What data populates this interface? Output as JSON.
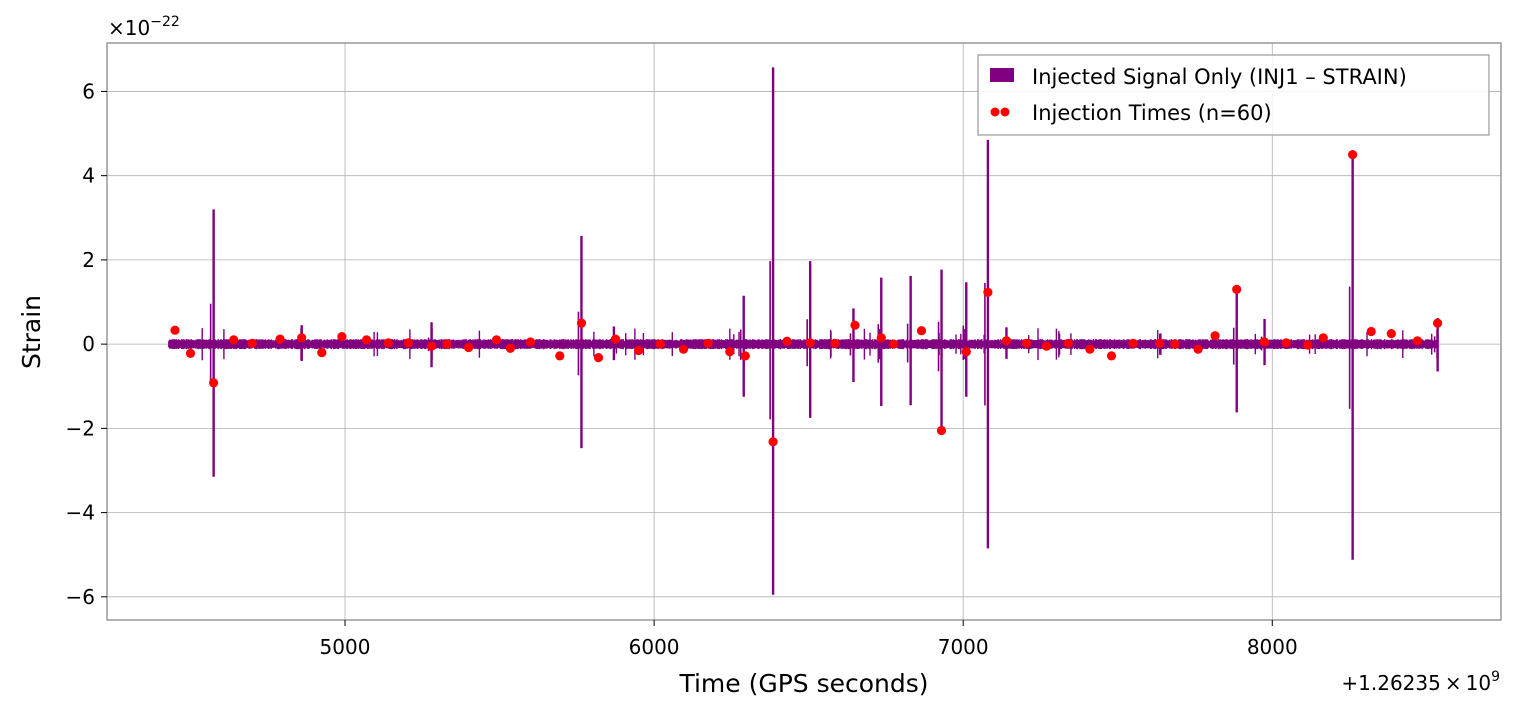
{
  "chart_data": {
    "type": "line",
    "title": "",
    "xlabel": "Time (GPS seconds)",
    "ylabel": "Strain",
    "x_offset_label_base": "+1.26235",
    "x_offset_label_times": "×",
    "x_offset_label_ten": "10",
    "x_offset_label_exp": "9",
    "y_scale_label_times": "×",
    "y_scale_label_ten": "10",
    "y_scale_label_exp": "−22",
    "xlim": [
      4230,
      8740
    ],
    "ylim": [
      -6.55,
      7.15
    ],
    "xticks": [
      5000,
      6000,
      7000,
      8000
    ],
    "xtick_labels": [
      "5000",
      "6000",
      "7000",
      "8000"
    ],
    "yticks": [
      -6,
      -4,
      -2,
      0,
      2,
      4,
      6
    ],
    "ytick_labels": [
      "−6",
      "−4",
      "−2",
      "0",
      "2",
      "4",
      "6"
    ],
    "grid": true,
    "legend_position": "top-right",
    "colors": {
      "signal": "#800080",
      "injection": "#ff0000",
      "grid": "#b0b0b0",
      "frame": "#808080"
    },
    "series": [
      {
        "name": "Injected Signal Only (INJ1 – STRAIN)",
        "kind": "line",
        "color": "#800080",
        "range": [
          4430,
          8535
        ],
        "noise_amplitude": 0.12,
        "spikes": [
          {
            "x": 4575,
            "max": 3.2,
            "min": -3.15
          },
          {
            "x": 5765,
            "max": 2.57,
            "min": -2.47
          },
          {
            "x": 6290,
            "max": 1.15,
            "min": -1.25
          },
          {
            "x": 6385,
            "max": 6.57,
            "min": -5.95
          },
          {
            "x": 6505,
            "max": 1.97,
            "min": -1.75
          },
          {
            "x": 6735,
            "max": 1.58,
            "min": -1.47
          },
          {
            "x": 6830,
            "max": 1.62,
            "min": -1.45
          },
          {
            "x": 6930,
            "max": 1.77,
            "min": -2.15
          },
          {
            "x": 7010,
            "max": 1.47,
            "min": -1.25
          },
          {
            "x": 7080,
            "max": 4.85,
            "min": -4.85
          },
          {
            "x": 7885,
            "max": 1.3,
            "min": -1.62
          },
          {
            "x": 8260,
            "max": 4.55,
            "min": -5.12
          },
          {
            "x": 8535,
            "max": 0.62,
            "min": -0.65
          },
          {
            "x": 4860,
            "max": 0.45,
            "min": -0.4
          },
          {
            "x": 5280,
            "max": 0.52,
            "min": -0.55
          },
          {
            "x": 5870,
            "max": 0.42,
            "min": -0.38
          },
          {
            "x": 6645,
            "max": 0.85,
            "min": -0.9
          },
          {
            "x": 7140,
            "max": 0.4,
            "min": -0.35
          },
          {
            "x": 7975,
            "max": 0.6,
            "min": -0.5
          }
        ]
      },
      {
        "name": "Injection Times (n=60)",
        "kind": "scatter",
        "color": "#ff0000",
        "points": [
          [
            4450,
            0.33
          ],
          [
            4500,
            -0.22
          ],
          [
            4575,
            -0.92
          ],
          [
            4640,
            0.1
          ],
          [
            4700,
            0.02
          ],
          [
            4790,
            0.12
          ],
          [
            4860,
            0.15
          ],
          [
            4925,
            -0.2
          ],
          [
            4990,
            0.18
          ],
          [
            5070,
            0.1
          ],
          [
            5140,
            0.03
          ],
          [
            5205,
            0.03
          ],
          [
            5280,
            -0.05
          ],
          [
            5330,
            0.0
          ],
          [
            5400,
            -0.08
          ],
          [
            5490,
            0.1
          ],
          [
            5535,
            -0.1
          ],
          [
            5600,
            0.05
          ],
          [
            5695,
            -0.28
          ],
          [
            5765,
            0.5
          ],
          [
            5820,
            -0.32
          ],
          [
            5875,
            0.12
          ],
          [
            5950,
            -0.15
          ],
          [
            6020,
            0.0
          ],
          [
            6095,
            -0.12
          ],
          [
            6175,
            0.02
          ],
          [
            6245,
            -0.18
          ],
          [
            6295,
            -0.28
          ],
          [
            6385,
            -2.32
          ],
          [
            6430,
            0.07
          ],
          [
            6505,
            0.03
          ],
          [
            6585,
            0.02
          ],
          [
            6650,
            0.45
          ],
          [
            6735,
            0.15
          ],
          [
            6775,
            0.0
          ],
          [
            6865,
            0.32
          ],
          [
            6930,
            -2.05
          ],
          [
            7010,
            -0.18
          ],
          [
            7080,
            1.23
          ],
          [
            7140,
            0.08
          ],
          [
            7205,
            0.02
          ],
          [
            7270,
            -0.05
          ],
          [
            7340,
            0.02
          ],
          [
            7410,
            -0.12
          ],
          [
            7480,
            -0.28
          ],
          [
            7550,
            0.02
          ],
          [
            7635,
            0.02
          ],
          [
            7685,
            0.0
          ],
          [
            7760,
            -0.12
          ],
          [
            7815,
            0.2
          ],
          [
            7885,
            1.3
          ],
          [
            7975,
            0.05
          ],
          [
            8045,
            0.03
          ],
          [
            8115,
            -0.02
          ],
          [
            8165,
            0.15
          ],
          [
            8260,
            4.5
          ],
          [
            8320,
            0.3
          ],
          [
            8385,
            0.25
          ],
          [
            8470,
            0.08
          ],
          [
            8535,
            0.5
          ]
        ]
      }
    ]
  }
}
